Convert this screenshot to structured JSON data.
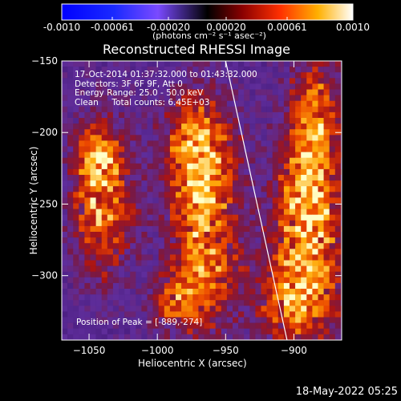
{
  "colorbar": {
    "tick_labels": [
      "-0.0010",
      "-0.00061",
      "-0.00020",
      "0.00020",
      "0.00061",
      "0.0010"
    ],
    "units_label": "(photons cm⁻² s⁻¹ asec⁻²)",
    "range": [
      -0.001,
      0.001
    ]
  },
  "chart_data": {
    "type": "heatmap",
    "title": "Reconstructed RHESSI Image",
    "xlabel": "Heliocentric X (arcsec)",
    "ylabel": "Heliocentric Y (arcsec)",
    "xlim": [
      -1070,
      -865
    ],
    "ylim": [
      -345,
      -150
    ],
    "x_ticks": [
      -1050,
      -1000,
      -950,
      -900
    ],
    "y_ticks": [
      -150,
      -200,
      -250,
      -300
    ],
    "x_tick_labels": [
      "−1050",
      "−1000",
      "−950",
      "−900"
    ],
    "y_tick_labels": [
      "−150",
      "−200",
      "−250",
      "−300"
    ],
    "limb_line": [
      [
        -950,
        -150
      ],
      [
        -905,
        -345
      ]
    ],
    "peak_position": [
      -889,
      -274
    ],
    "annotations": {
      "time_range": "17-Oct-2014 01:37:32.000 to 01:43:32.000",
      "detectors": "Detectors: 3F 6F 9F, Att 0",
      "energy_range": "Energy Range: 25.0 - 50.0 keV",
      "method_counts": "Clean     Total counts: 6.45E+03",
      "peak_label": "Position of Peak = [-889,-274]"
    }
  },
  "footer": {
    "timestamp": "18-May-2022 05:25"
  }
}
